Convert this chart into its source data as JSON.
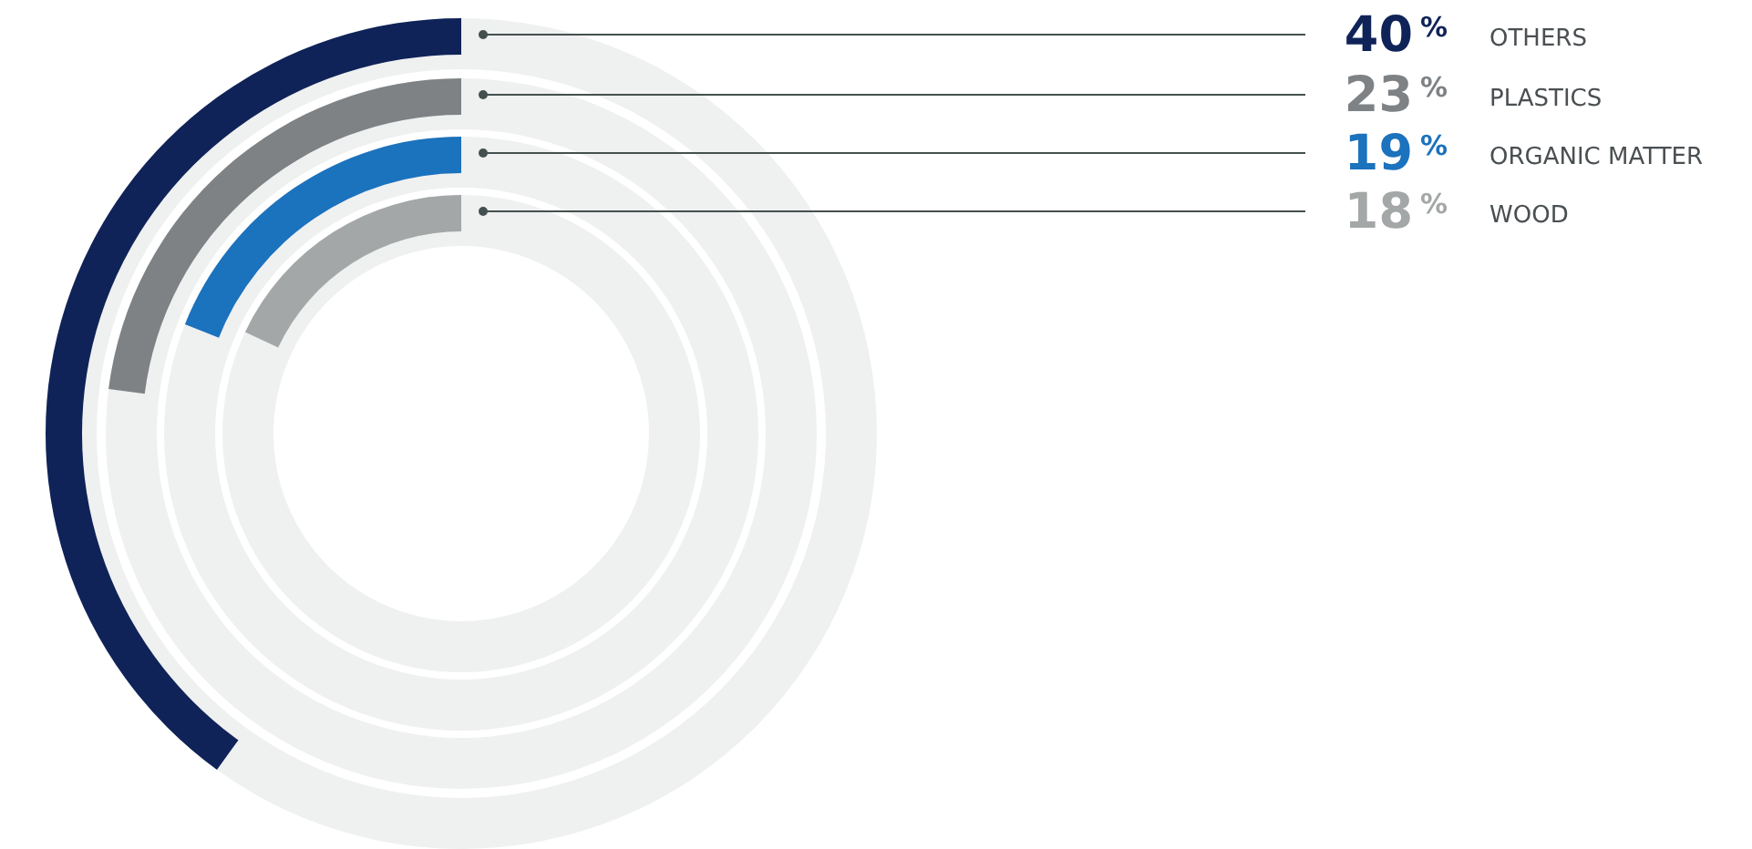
{
  "chart_data": {
    "type": "other",
    "categories": [
      "OTHERS",
      "PLASTICS",
      "ORGANIC MATTER",
      "WOOD"
    ],
    "values": [
      40,
      23,
      19,
      18
    ],
    "value_labels": [
      "40%",
      "23%",
      "19%",
      "18%"
    ],
    "colors": [
      "#0f2358",
      "#7e8285",
      "#1b72bd",
      "#a4a7a7"
    ]
  }
}
